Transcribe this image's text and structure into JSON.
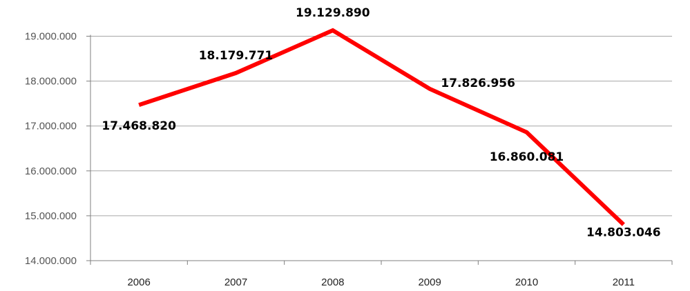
{
  "chart_data": {
    "type": "line",
    "categories": [
      "2006",
      "2007",
      "2008",
      "2009",
      "2010",
      "2011"
    ],
    "series": [
      {
        "values": [
          17468820,
          18179771,
          19129890,
          17826956,
          16860081,
          14803046
        ],
        "color": "#ff0000"
      }
    ],
    "data_labels": [
      "17.468.820",
      "18.179.771",
      "19.129.890",
      "17.826.956",
      "16.860.081",
      "14.803.046"
    ],
    "ylim": [
      14000000,
      19000000
    ],
    "yticks": [
      14000000,
      15000000,
      16000000,
      17000000,
      18000000,
      19000000
    ],
    "ytick_labels": [
      "14.000.000",
      "15.000.000",
      "16.000.000",
      "17.000.000",
      "18.000.000",
      "19.000.000"
    ],
    "title": "",
    "xlabel": "",
    "ylabel": "",
    "grid": true,
    "legend": false
  }
}
